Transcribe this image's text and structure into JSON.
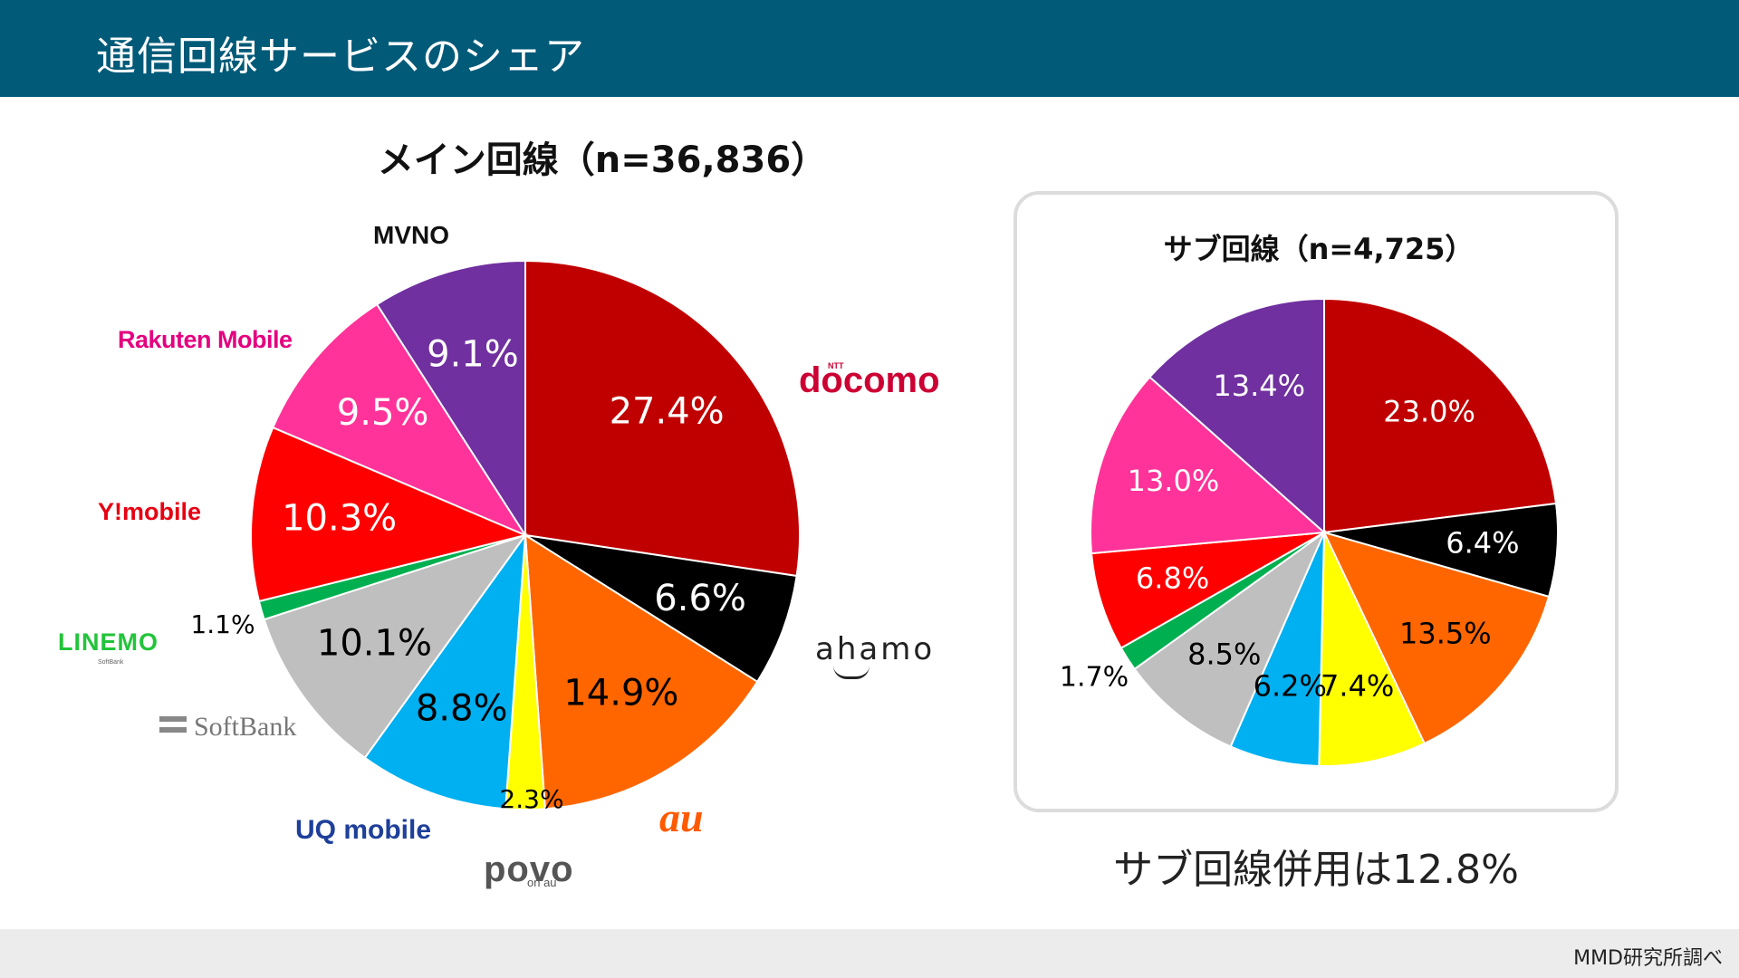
{
  "header": {
    "title": "通信回線サービスのシェア",
    "bg_color": "#005a78"
  },
  "footer": {
    "source": "MMD研究所調べ"
  },
  "sub_usage_note": "サブ回線併用は12.8%",
  "brands": {
    "mvno": "MVNO",
    "rakuten": "Rakuten Mobile",
    "ymobile": "Y!mobile",
    "linemo": "LINEMO",
    "linemo_sub": "SoftBank",
    "softbank": "SoftBank",
    "uq": "UQ mobile",
    "povo": "povo",
    "povo_sub": "on au",
    "au": "au",
    "ahamo": "ahamo",
    "docomo": "docomo",
    "docomo_ntt": "NTT"
  },
  "chart_data": [
    {
      "type": "pie",
      "title": "メイン回線（n=36,836）",
      "categories": [
        "docomo",
        "ahamo",
        "au",
        "povo",
        "UQ mobile",
        "SoftBank",
        "LINEMO",
        "Y!mobile",
        "Rakuten Mobile",
        "MVNO"
      ],
      "values": [
        27.4,
        6.6,
        14.9,
        2.3,
        8.8,
        10.1,
        1.1,
        10.3,
        9.5,
        9.1
      ],
      "labels": [
        "27.4%",
        "6.6%",
        "14.9%",
        "2.3%",
        "8.8%",
        "10.1%",
        "1.1%",
        "10.3%",
        "9.5%",
        "9.1%"
      ],
      "colors": [
        "#c00000",
        "#000000",
        "#ff6600",
        "#ffff00",
        "#00b0f0",
        "#bfbfbf",
        "#00b050",
        "#ff0000",
        "#ff3399",
        "#7030a0"
      ],
      "label_colors": [
        "#ffffff",
        "#ffffff",
        "#000000",
        "#000000",
        "#000000",
        "#000000",
        "#000000",
        "#ffffff",
        "#ffffff",
        "#ffffff"
      ],
      "start": "12 o'clock, clockwise"
    },
    {
      "type": "pie",
      "title": "サブ回線（n=4,725）",
      "categories": [
        "docomo",
        "ahamo",
        "au",
        "povo",
        "UQ mobile",
        "SoftBank",
        "LINEMO",
        "Y!mobile",
        "Rakuten Mobile",
        "MVNO"
      ],
      "values": [
        23.0,
        6.4,
        13.5,
        7.4,
        6.2,
        8.5,
        1.7,
        6.8,
        13.0,
        13.4
      ],
      "labels": [
        "23.0%",
        "6.4%",
        "13.5%",
        "7.4%",
        "6.2%",
        "8.5%",
        "1.7%",
        "6.8%",
        "13.0%",
        "13.4%"
      ],
      "colors": [
        "#c00000",
        "#000000",
        "#ff6600",
        "#ffff00",
        "#00b0f0",
        "#bfbfbf",
        "#00b050",
        "#ff0000",
        "#ff3399",
        "#7030a0"
      ],
      "label_colors": [
        "#ffffff",
        "#ffffff",
        "#000000",
        "#000000",
        "#000000",
        "#000000",
        "#000000",
        "#ffffff",
        "#ffffff",
        "#ffffff"
      ],
      "start": "12 o'clock, clockwise"
    }
  ]
}
